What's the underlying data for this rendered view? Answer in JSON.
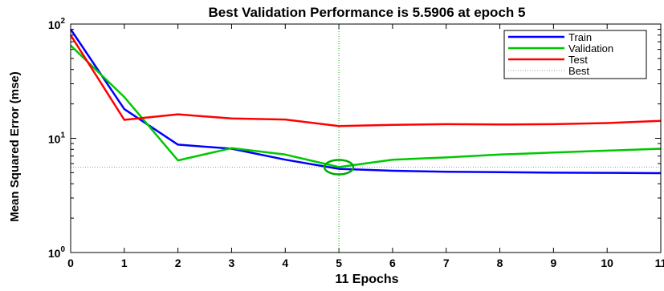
{
  "chart_data": {
    "type": "line",
    "title": "Best Validation Performance is 5.5906 at epoch 5",
    "xlabel": "11 Epochs",
    "ylabel": "Mean Squared Error  (mse)",
    "x": [
      0,
      1,
      2,
      3,
      4,
      5,
      6,
      7,
      8,
      9,
      10,
      11
    ],
    "x_ticks": [
      "0",
      "1",
      "2",
      "3",
      "4",
      "5",
      "6",
      "7",
      "8",
      "9",
      "10",
      "11"
    ],
    "y_scale": "log",
    "y_ticks": [
      {
        "value": 1,
        "base": "10",
        "exp": "0"
      },
      {
        "value": 10,
        "base": "10",
        "exp": "1"
      },
      {
        "value": 100,
        "base": "10",
        "exp": "2"
      }
    ],
    "xlim": [
      0,
      11
    ],
    "ylim": [
      1,
      100
    ],
    "legend_position": "top-right",
    "series": [
      {
        "name": "Train",
        "color": "#0000ff",
        "values": [
          90,
          18,
          8.8,
          8.1,
          6.5,
          5.4,
          5.2,
          5.1,
          5.05,
          5.0,
          4.98,
          4.95
        ]
      },
      {
        "name": "Validation",
        "color": "#00c800",
        "values": [
          65,
          23,
          6.4,
          8.2,
          7.2,
          5.6,
          6.5,
          6.8,
          7.2,
          7.5,
          7.8,
          8.1
        ]
      },
      {
        "name": "Test",
        "color": "#ff0000",
        "values": [
          80,
          14.5,
          16.2,
          14.9,
          14.6,
          12.8,
          13.1,
          13.3,
          13.2,
          13.3,
          13.6,
          14.2
        ]
      }
    ],
    "best": {
      "name": "Best",
      "epoch": 5,
      "value": 5.5906,
      "color": "#00aa00"
    }
  }
}
